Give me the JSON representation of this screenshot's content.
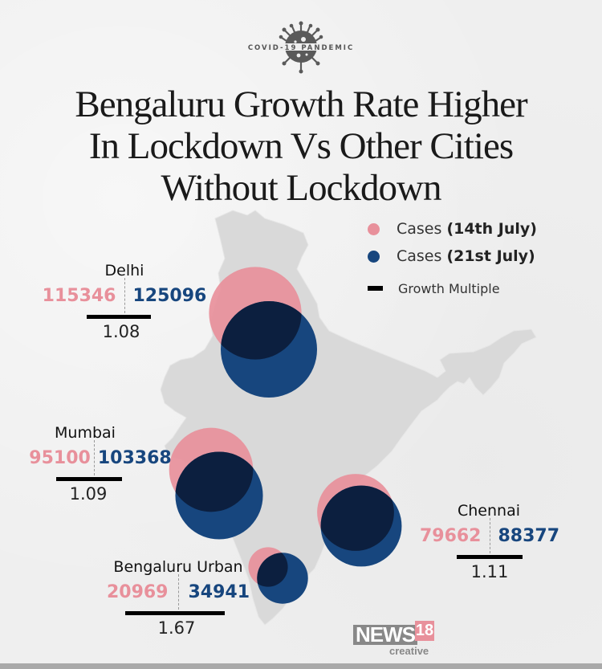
{
  "badge": {
    "label": "COVID-19 PANDEMIC",
    "icon": "virus-icon"
  },
  "title_lines": [
    "Bengaluru Growth Rate Higher",
    "In Lockdown Vs Other Cities",
    "Without Lockdown"
  ],
  "colors": {
    "cases_14": "#e8909b",
    "cases_21": "#17467e",
    "overlap": "#0c1f3f",
    "map": "#d9d9d9",
    "growth_bar": "#000000"
  },
  "legend": [
    {
      "prefix": "Cases ",
      "bold": "(14th July)",
      "type": "dot",
      "color": "#e8909b"
    },
    {
      "prefix": "Cases ",
      "bold": "(21st July)",
      "type": "dot",
      "color": "#17467e"
    },
    {
      "prefix": "Growth Multiple",
      "bold": "",
      "type": "bar",
      "color": "#000000"
    }
  ],
  "chart_data": {
    "type": "bubble-map",
    "title": "Bengaluru Growth Rate Higher In Lockdown Vs Other Cities Without Lockdown",
    "series": [
      {
        "name": "Cases (14th July)",
        "color": "#e8909b"
      },
      {
        "name": "Cases (21st July)",
        "color": "#17467e"
      }
    ],
    "cities": [
      {
        "name": "Delhi",
        "cases_14_july": 115346,
        "cases_21_july": 125096,
        "growth_multiple": "1.08"
      },
      {
        "name": "Mumbai",
        "cases_14_july": 95100,
        "cases_21_july": 103368,
        "growth_multiple": "1.09"
      },
      {
        "name": "Chennai",
        "cases_14_july": 79662,
        "cases_21_july": 88377,
        "growth_multiple": "1.11"
      },
      {
        "name": "Bengaluru Urban",
        "cases_14_july": 20969,
        "cases_21_july": 34941,
        "growth_multiple": "1.67"
      }
    ],
    "legend_placement": "top-right"
  },
  "logo": {
    "news": "NEWS",
    "num": "18",
    "sub": "creative"
  }
}
